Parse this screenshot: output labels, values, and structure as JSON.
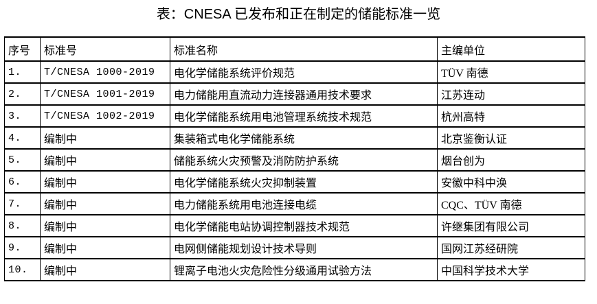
{
  "title": "表：CNESA 已发布和正在制定的储能标准一览",
  "table": {
    "columns": [
      "序号",
      "标准号",
      "标准名称",
      "主编单位"
    ],
    "rows": [
      {
        "no": "1.",
        "standard_no": "T/CNESA 1000-2019",
        "name": "电化学储能系统评价规范",
        "editor": "TÜV 南德"
      },
      {
        "no": "2.",
        "standard_no": "T/CNESA 1001-2019",
        "name": "电力储能用直流动力连接器通用技术要求",
        "editor": "江苏连动"
      },
      {
        "no": "3.",
        "standard_no": "T/CNESA 1002-2019",
        "name": "电化学储能系统用电池管理系统技术规范",
        "editor": "杭州高特"
      },
      {
        "no": "4.",
        "standard_no": "编制中",
        "name": "集装箱式电化学储能系统",
        "editor": "北京鉴衡认证"
      },
      {
        "no": "5.",
        "standard_no": "编制中",
        "name": "储能系统火灾预警及消防防护系统",
        "editor": "烟台创为"
      },
      {
        "no": "6.",
        "standard_no": "编制中",
        "name": "电化学储能系统火灾抑制装置",
        "editor": "安徽中科中涣"
      },
      {
        "no": "7.",
        "standard_no": "编制中",
        "name": "电力储能系统用电池连接电缆",
        "editor": "CQC、TÜV 南德"
      },
      {
        "no": "8.",
        "standard_no": "编制中",
        "name": "电化学储能电站协调控制器技术规范",
        "editor": "许继集团有限公司"
      },
      {
        "no": "9.",
        "standard_no": "编制中",
        "name": "电网侧储能规划设计技术导则",
        "editor": "国网江苏经研院"
      },
      {
        "no": "10.",
        "standard_no": "编制中",
        "name": "锂离子电池火灾危险性分级通用试验方法",
        "editor": "中国科学技术大学"
      }
    ]
  },
  "colors": {
    "background": "#ffffff",
    "text": "#000000",
    "border": "#000000"
  }
}
